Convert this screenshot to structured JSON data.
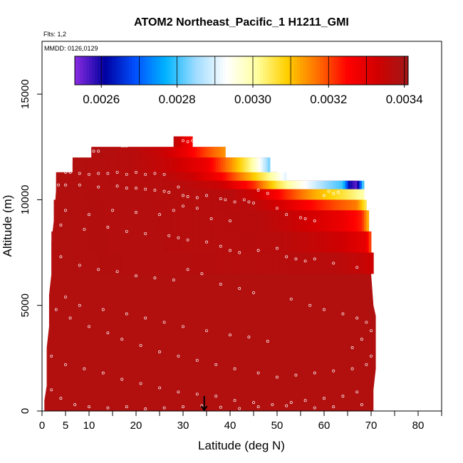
{
  "chart_data": {
    "type": "heatmap",
    "title": "ATOM2 Northeast_Pacific_1 H1211_GMI",
    "subtitle_flights": "Flts: 1,2",
    "subtitle_dates": "MMDD: 0126,0129",
    "xlabel": "Latitude (deg N)",
    "ylabel": "Altitude (m)",
    "xlim": [
      0,
      85
    ],
    "ylim": [
      0,
      17500
    ],
    "x_ticks": [
      0,
      5,
      10,
      20,
      30,
      40,
      50,
      60,
      70,
      80
    ],
    "x_minor_ticks": [
      15,
      25,
      35,
      45,
      55,
      65,
      75,
      85
    ],
    "y_ticks": [
      0,
      5000,
      10000,
      15000
    ],
    "marker_latitude": 34.5,
    "colorbar": {
      "min": 0.00253,
      "max": 0.00341,
      "tick_values": [
        0.0026,
        0.0028,
        0.003,
        0.0032,
        0.0034
      ],
      "tick_labels": [
        "0.0026",
        "0.0028",
        "0.0030",
        "0.0032",
        "0.0034"
      ],
      "colors": [
        "#8a2be2",
        "#0000a0",
        "#0050ff",
        "#00b4ff",
        "#a0dcff",
        "#ffffff",
        "#ffffa0",
        "#ffd000",
        "#ff7000",
        "#ff0000",
        "#d00000",
        "#a01818"
      ]
    },
    "background_value": 0.00338,
    "envelope_left": [
      [
        0.5,
        0
      ],
      [
        0.5,
        500
      ],
      [
        1,
        1200
      ],
      [
        1,
        3000
      ],
      [
        1.5,
        4000
      ],
      [
        1.5,
        5500
      ],
      [
        2,
        6500
      ],
      [
        2,
        8000
      ],
      [
        2.5,
        9000
      ],
      [
        3,
        10500
      ],
      [
        3,
        11300
      ],
      [
        6.5,
        11300
      ],
      [
        6.5,
        11800
      ],
      [
        10.5,
        11800
      ],
      [
        10.5,
        12500
      ],
      [
        28,
        12500
      ],
      [
        28,
        13000
      ],
      [
        32,
        13000
      ]
    ],
    "envelope_right": [
      [
        32,
        13000
      ],
      [
        32,
        12500
      ],
      [
        39,
        12500
      ],
      [
        39,
        12000
      ],
      [
        48,
        12000
      ],
      [
        48,
        11300
      ],
      [
        50,
        11300
      ],
      [
        50,
        10900
      ],
      [
        67,
        10900
      ],
      [
        68.5,
        10500
      ],
      [
        68.5,
        9500
      ],
      [
        69,
        8500
      ],
      [
        69.5,
        7500
      ],
      [
        70,
        6500
      ],
      [
        70.5,
        5000
      ],
      [
        71,
        4500
      ],
      [
        71,
        2000
      ],
      [
        70.5,
        1000
      ],
      [
        70.5,
        0
      ]
    ],
    "layers": [
      {
        "alt_bottom": 12500,
        "alt_top": 13000,
        "lat_start": 28,
        "lat_end": 32,
        "values": [
          [
            28,
            0.00336
          ],
          [
            29,
            0.00334
          ],
          [
            30,
            0.0033
          ],
          [
            32,
            0.00326
          ]
        ]
      },
      {
        "alt_bottom": 12000,
        "alt_top": 12500,
        "lat_start": 10.5,
        "lat_end": 39,
        "values": [
          [
            10.5,
            0.00338
          ],
          [
            20,
            0.00337
          ],
          [
            26,
            0.00334
          ],
          [
            30,
            0.00329
          ],
          [
            35,
            0.0032
          ],
          [
            39,
            0.00314
          ]
        ]
      },
      {
        "alt_bottom": 11300,
        "alt_top": 12000,
        "lat_start": 6.5,
        "lat_end": 48.5,
        "values": [
          [
            6.5,
            0.00338
          ],
          [
            20,
            0.00337
          ],
          [
            28,
            0.00334
          ],
          [
            35,
            0.00328
          ],
          [
            40,
            0.00315
          ],
          [
            44,
            0.00303
          ],
          [
            46,
            0.00295
          ],
          [
            48.5,
            0.00282
          ]
        ]
      },
      {
        "alt_bottom": 10900,
        "alt_top": 11300,
        "lat_start": 3,
        "lat_end": 52,
        "values": [
          [
            3,
            0.00338
          ],
          [
            25,
            0.00337
          ],
          [
            32,
            0.00334
          ],
          [
            38,
            0.00326
          ],
          [
            44,
            0.00312
          ],
          [
            49,
            0.003
          ],
          [
            52,
            0.0029
          ]
        ]
      },
      {
        "alt_bottom": 10500,
        "alt_top": 10900,
        "lat_start": 3,
        "lat_end": 68.5,
        "values": [
          [
            3,
            0.00338
          ],
          [
            30,
            0.00337
          ],
          [
            38,
            0.00334
          ],
          [
            45,
            0.00322
          ],
          [
            50,
            0.00306
          ],
          [
            55,
            0.00295
          ],
          [
            60,
            0.00285
          ],
          [
            64,
            0.0028
          ],
          [
            65.5,
            0.0026
          ],
          [
            67,
            0.00255
          ],
          [
            68.5,
            0.00285
          ]
        ]
      },
      {
        "alt_bottom": 10000,
        "alt_top": 10500,
        "lat_start": 3,
        "lat_end": 68.5,
        "values": [
          [
            3,
            0.00338
          ],
          [
            40,
            0.00337
          ],
          [
            46,
            0.00333
          ],
          [
            52,
            0.00322
          ],
          [
            58,
            0.00312
          ],
          [
            64,
            0.00306
          ],
          [
            68.5,
            0.003
          ]
        ]
      },
      {
        "alt_bottom": 9500,
        "alt_top": 10000,
        "lat_start": 2.5,
        "lat_end": 69,
        "values": [
          [
            2.5,
            0.00338
          ],
          [
            44,
            0.00337
          ],
          [
            50,
            0.00333
          ],
          [
            56,
            0.00326
          ],
          [
            62,
            0.0032
          ],
          [
            67,
            0.00316
          ],
          [
            69,
            0.00304
          ]
        ]
      },
      {
        "alt_bottom": 8500,
        "alt_top": 9500,
        "lat_start": 2.5,
        "lat_end": 69.5,
        "values": [
          [
            2.5,
            0.00338
          ],
          [
            46,
            0.00337
          ],
          [
            52,
            0.00335
          ],
          [
            58,
            0.00332
          ],
          [
            64,
            0.00328
          ],
          [
            68,
            0.00323
          ],
          [
            69.5,
            0.0031
          ]
        ]
      },
      {
        "alt_bottom": 7500,
        "alt_top": 8500,
        "lat_start": 2,
        "lat_end": 70,
        "values": [
          [
            2,
            0.00338
          ],
          [
            50,
            0.00337
          ],
          [
            58,
            0.00335
          ],
          [
            64,
            0.00333
          ],
          [
            69,
            0.00329
          ],
          [
            70,
            0.00318
          ]
        ]
      },
      {
        "alt_bottom": 6500,
        "alt_top": 7500,
        "lat_start": 2,
        "lat_end": 70.5,
        "values": [
          [
            2,
            0.00338
          ],
          [
            62,
            0.00337
          ],
          [
            68,
            0.00335
          ],
          [
            70.5,
            0.00333
          ]
        ]
      }
    ],
    "sample_points": [
      [
        11,
        12300
      ],
      [
        12,
        12300
      ],
      [
        17,
        12550
      ],
      [
        17.5,
        12550
      ],
      [
        18,
        12550
      ],
      [
        30,
        12800
      ],
      [
        31,
        12750
      ],
      [
        32,
        12800
      ],
      [
        33,
        12700
      ],
      [
        5,
        11300
      ],
      [
        6,
        11300
      ],
      [
        8,
        11250
      ],
      [
        10,
        11200
      ],
      [
        12,
        11250
      ],
      [
        14,
        11250
      ],
      [
        16,
        11300
      ],
      [
        18,
        11200
      ],
      [
        20,
        11300
      ],
      [
        22,
        11200
      ],
      [
        24,
        11250
      ],
      [
        26,
        11200
      ],
      [
        3.5,
        10700
      ],
      [
        5,
        10700
      ],
      [
        8,
        10700
      ],
      [
        12,
        10600
      ],
      [
        16,
        10650
      ],
      [
        18,
        10550
      ],
      [
        20,
        10550
      ],
      [
        22,
        10500
      ],
      [
        24,
        10450
      ],
      [
        26,
        10400
      ],
      [
        27,
        10350
      ],
      [
        29,
        10600
      ],
      [
        30,
        10200
      ],
      [
        31,
        10150
      ],
      [
        33,
        10100
      ],
      [
        35,
        10200
      ],
      [
        38,
        10050
      ],
      [
        39,
        10000
      ],
      [
        41,
        9900
      ],
      [
        43,
        10000
      ],
      [
        44,
        9900
      ],
      [
        45,
        9850
      ],
      [
        46,
        10450
      ],
      [
        48,
        10300
      ],
      [
        50,
        9600
      ],
      [
        52,
        9300
      ],
      [
        55,
        9150
      ],
      [
        56,
        9100
      ],
      [
        58,
        9000
      ],
      [
        60,
        10200
      ],
      [
        61,
        10400
      ],
      [
        62,
        10300
      ],
      [
        63,
        10350
      ],
      [
        5,
        9500
      ],
      [
        10,
        9300
      ],
      [
        15,
        9500
      ],
      [
        20,
        9400
      ],
      [
        25,
        9300
      ],
      [
        28,
        9500
      ],
      [
        30,
        9700
      ],
      [
        33,
        9600
      ],
      [
        36,
        9100
      ],
      [
        40,
        9000
      ],
      [
        4,
        8800
      ],
      [
        9,
        8600
      ],
      [
        14,
        8700
      ],
      [
        18,
        8500
      ],
      [
        22,
        8400
      ],
      [
        27,
        8300
      ],
      [
        29,
        8200
      ],
      [
        31,
        8100
      ],
      [
        35,
        8000
      ],
      [
        38,
        7800
      ],
      [
        40,
        7600
      ],
      [
        42,
        7500
      ],
      [
        46,
        7600
      ],
      [
        50,
        7700
      ],
      [
        52,
        7300
      ],
      [
        54,
        7200
      ],
      [
        56,
        7100
      ],
      [
        58,
        7200
      ],
      [
        62,
        7000
      ],
      [
        67,
        6800
      ],
      [
        4,
        7300
      ],
      [
        8,
        6900
      ],
      [
        12,
        6700
      ],
      [
        16,
        6600
      ],
      [
        20,
        6400
      ],
      [
        24,
        6300
      ],
      [
        28,
        6200
      ],
      [
        31,
        6700
      ],
      [
        34,
        6500
      ],
      [
        38,
        6000
      ],
      [
        42,
        5800
      ],
      [
        45,
        5600
      ],
      [
        5,
        5400
      ],
      [
        8,
        5000
      ],
      [
        13,
        4800
      ],
      [
        18,
        4600
      ],
      [
        22,
        4400
      ],
      [
        26,
        4200
      ],
      [
        30,
        4000
      ],
      [
        35,
        3800
      ],
      [
        40,
        3600
      ],
      [
        44,
        3500
      ],
      [
        48,
        3300
      ],
      [
        53,
        5300
      ],
      [
        57,
        5000
      ],
      [
        60,
        4800
      ],
      [
        64,
        4600
      ],
      [
        67,
        4400
      ],
      [
        69,
        4200
      ],
      [
        70,
        3800
      ],
      [
        68,
        3400
      ],
      [
        66,
        3000
      ],
      [
        3,
        4800
      ],
      [
        6,
        4400
      ],
      [
        10,
        4000
      ],
      [
        14,
        3700
      ],
      [
        17,
        3400
      ],
      [
        21,
        3100
      ],
      [
        25,
        2800
      ],
      [
        29,
        2600
      ],
      [
        33,
        2400
      ],
      [
        37,
        2200
      ],
      [
        41,
        2000
      ],
      [
        46,
        1800
      ],
      [
        50,
        1600
      ],
      [
        54,
        1700
      ],
      [
        58,
        1800
      ],
      [
        62,
        1900
      ],
      [
        66,
        2000
      ],
      [
        69,
        2200
      ],
      [
        70,
        2600
      ],
      [
        2,
        2600
      ],
      [
        5,
        2200
      ],
      [
        9,
        2000
      ],
      [
        13,
        1800
      ],
      [
        17,
        1500
      ],
      [
        21,
        1300
      ],
      [
        25,
        1100
      ],
      [
        29,
        900
      ],
      [
        33,
        800
      ],
      [
        37,
        700
      ],
      [
        41,
        500
      ],
      [
        45,
        400
      ],
      [
        49,
        300
      ],
      [
        53,
        400
      ],
      [
        56,
        500
      ],
      [
        60,
        600
      ],
      [
        64,
        700
      ],
      [
        67,
        900
      ],
      [
        2,
        1000
      ],
      [
        4,
        600
      ],
      [
        7,
        300
      ],
      [
        10,
        200
      ],
      [
        14,
        150
      ],
      [
        18,
        200
      ],
      [
        22,
        100
      ],
      [
        26,
        150
      ],
      [
        30,
        200
      ],
      [
        34,
        250
      ],
      [
        38,
        180
      ],
      [
        42,
        120
      ],
      [
        46,
        200
      ],
      [
        52,
        250
      ],
      [
        58,
        150
      ],
      [
        62,
        200
      ],
      [
        68,
        300
      ]
    ]
  }
}
